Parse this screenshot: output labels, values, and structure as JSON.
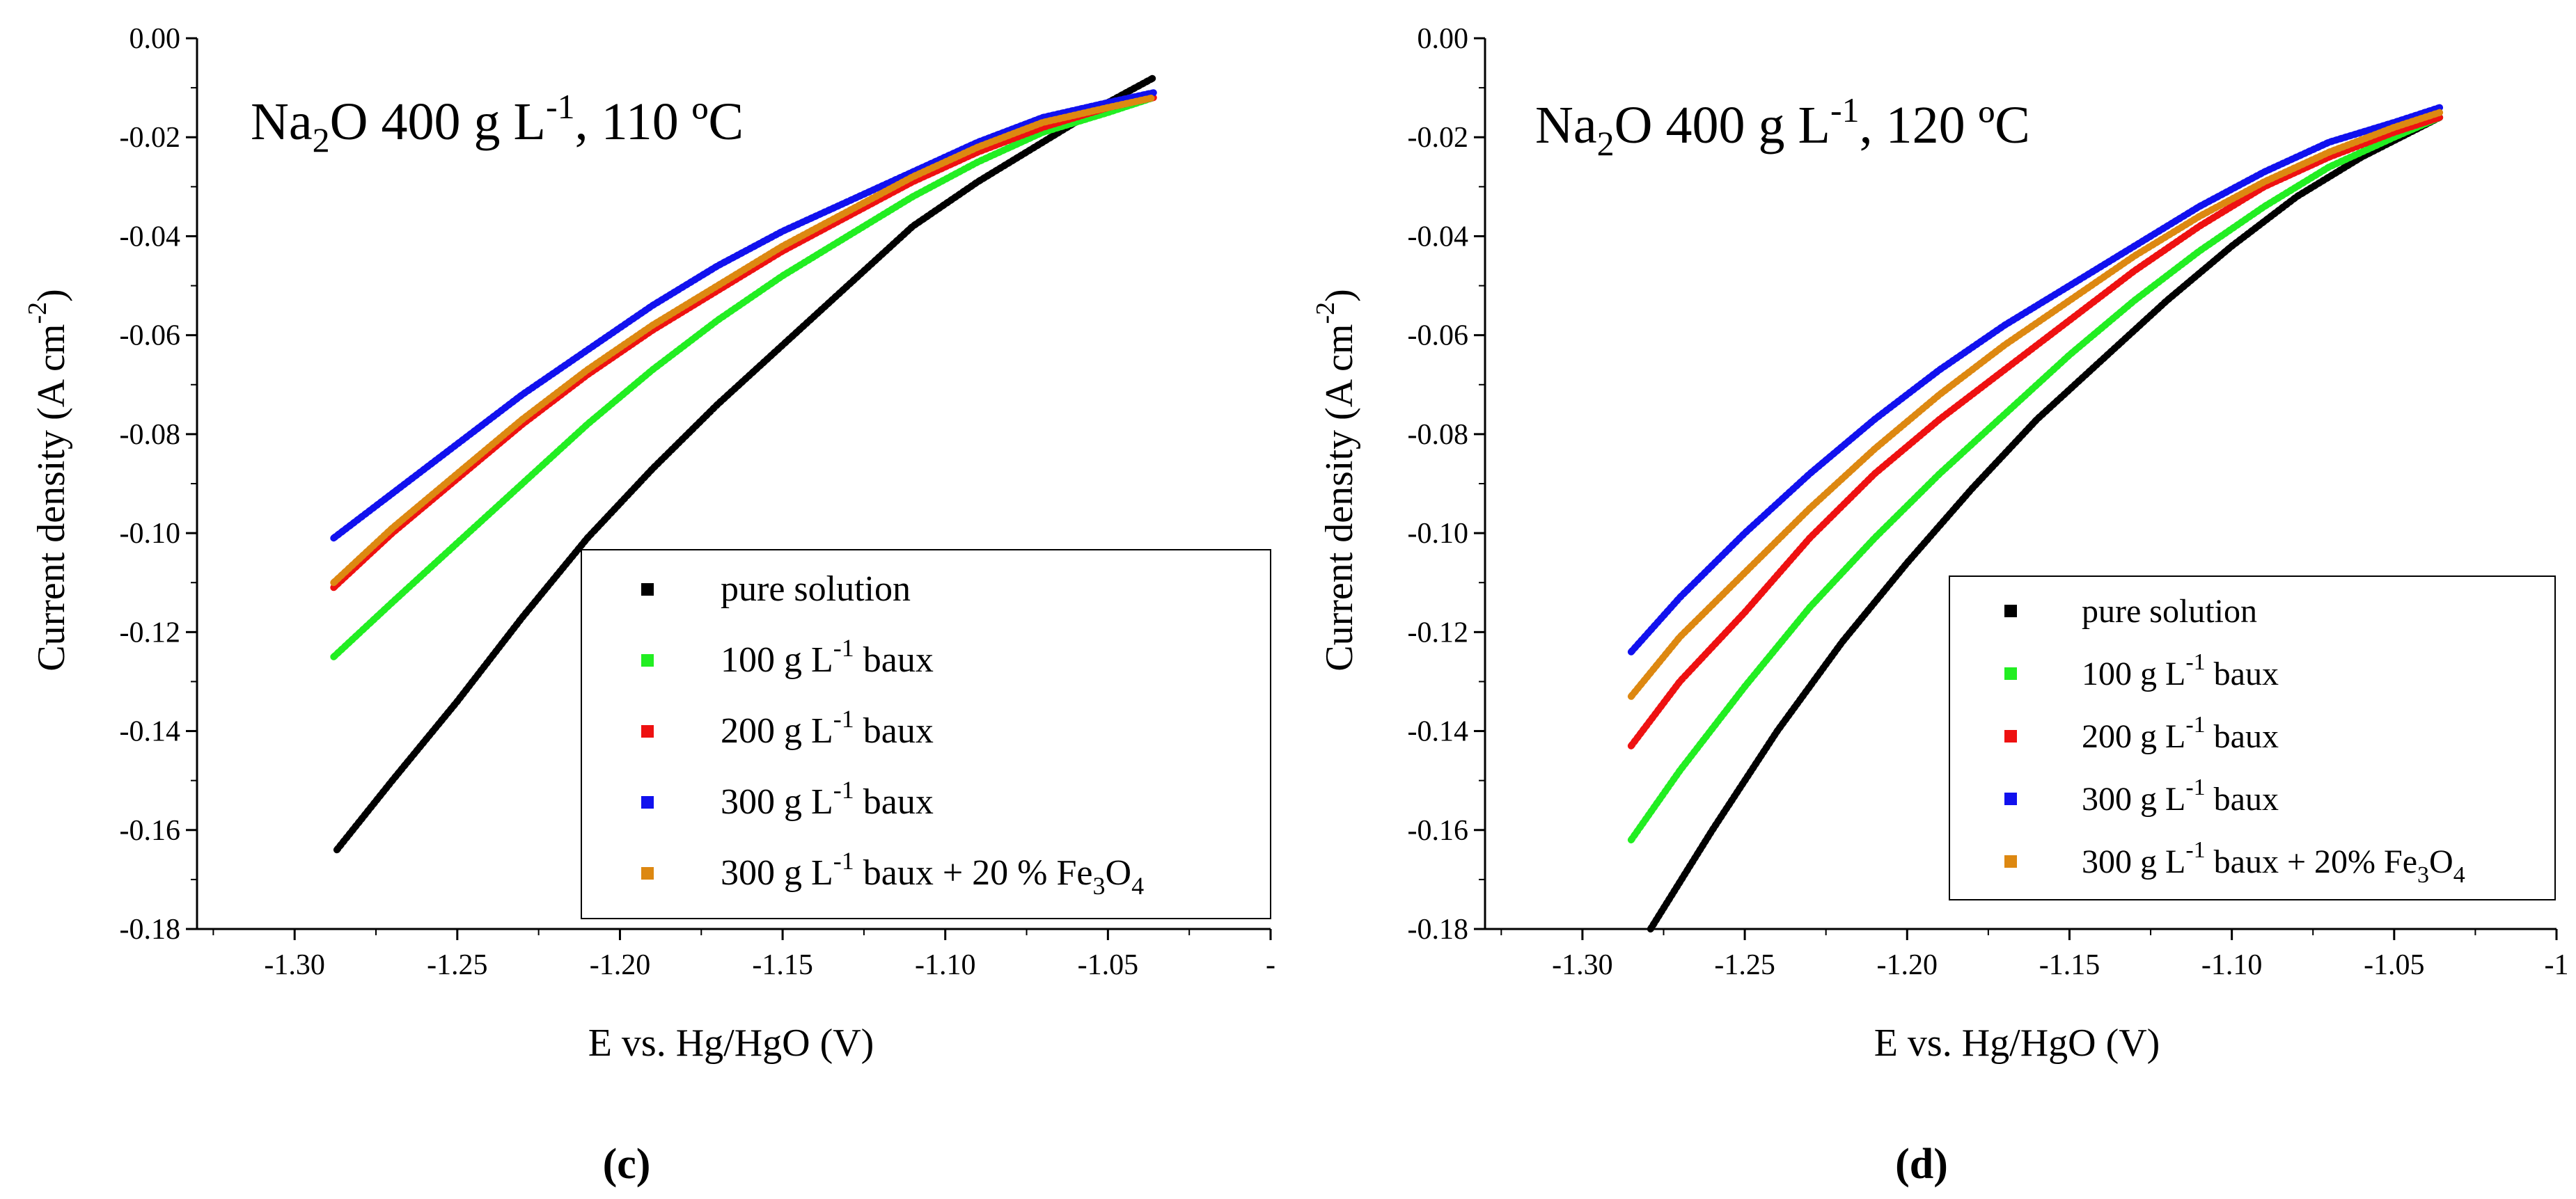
{
  "figure": {
    "panel_labels": [
      "(c)",
      "(d)"
    ]
  },
  "chart_data": [
    {
      "type": "line",
      "panel": "(c)",
      "title": {
        "base": "Na",
        "sub1": "2",
        "mid": "O 400 g L",
        "sup": "-1",
        "tail": ", 110 ºC"
      },
      "xlabel": "E vs. Hg/HgO (V)",
      "ylabel": {
        "base": "Current density (A cm",
        "sup": "-2",
        "tail": ")"
      },
      "xlim": [
        -1.33,
        -1.0
      ],
      "ylim": [
        -0.18,
        0.0
      ],
      "xticks": [
        {
          "value": -1.3,
          "label": "-1.30"
        },
        {
          "value": -1.25,
          "label": "-1.25"
        },
        {
          "value": -1.2,
          "label": "-1.20"
        },
        {
          "value": -1.15,
          "label": "-1.15"
        },
        {
          "value": -1.1,
          "label": "-1.10"
        },
        {
          "value": -1.05,
          "label": "-1.05"
        },
        {
          "value": -1.0,
          "label": "-"
        }
      ],
      "yticks": [
        {
          "value": 0.0,
          "label": "0.00"
        },
        {
          "value": -0.02,
          "label": "-0.02"
        },
        {
          "value": -0.04,
          "label": "-0.04"
        },
        {
          "value": -0.06,
          "label": "-0.06"
        },
        {
          "value": -0.08,
          "label": "-0.08"
        },
        {
          "value": -0.1,
          "label": "-0.10"
        },
        {
          "value": -0.12,
          "label": "-0.12"
        },
        {
          "value": -0.14,
          "label": "-0.14"
        },
        {
          "value": -0.16,
          "label": "-0.16"
        },
        {
          "value": -0.18,
          "label": "-0.18"
        }
      ],
      "legend": {
        "position": "lower-right",
        "entries": [
          {
            "pre": "pure solution",
            "sup": "",
            "post": "",
            "sub": "",
            "end": "",
            "color": "#000000"
          },
          {
            "pre": "100 g L",
            "sup": "-1",
            "post": " baux",
            "sub": "",
            "end": "",
            "color": "#22ee22"
          },
          {
            "pre": "200 g L",
            "sup": "-1",
            "post": " baux",
            "sub": "",
            "end": "",
            "color": "#ee1111"
          },
          {
            "pre": "300 g L",
            "sup": "-1",
            "post": " baux",
            "sub": "",
            "end": "",
            "color": "#1111ee"
          },
          {
            "pre": "300 g L",
            "sup": "-1",
            "post": " baux + 20 % Fe",
            "sub": "3",
            "end": "O",
            "sub2": "4",
            "color": "#dd8811"
          }
        ]
      },
      "series": [
        {
          "name": "pure solution",
          "color": "#000000",
          "x": [
            -1.287,
            -1.27,
            -1.25,
            -1.23,
            -1.21,
            -1.19,
            -1.17,
            -1.15,
            -1.13,
            -1.11,
            -1.09,
            -1.07,
            -1.05,
            -1.036
          ],
          "y": [
            -0.164,
            -0.15,
            -0.134,
            -0.117,
            -0.101,
            -0.087,
            -0.074,
            -0.062,
            -0.05,
            -0.038,
            -0.029,
            -0.021,
            -0.013,
            -0.008
          ]
        },
        {
          "name": "100 g L-1 baux",
          "color": "#22ee22",
          "x": [
            -1.288,
            -1.27,
            -1.25,
            -1.23,
            -1.21,
            -1.19,
            -1.17,
            -1.15,
            -1.13,
            -1.11,
            -1.09,
            -1.07,
            -1.05,
            -1.036
          ],
          "y": [
            -0.125,
            -0.114,
            -0.102,
            -0.09,
            -0.078,
            -0.067,
            -0.057,
            -0.048,
            -0.04,
            -0.032,
            -0.025,
            -0.019,
            -0.015,
            -0.012
          ]
        },
        {
          "name": "200 g L-1 baux",
          "color": "#ee1111",
          "x": [
            -1.288,
            -1.27,
            -1.25,
            -1.23,
            -1.21,
            -1.19,
            -1.17,
            -1.15,
            -1.13,
            -1.11,
            -1.09,
            -1.07,
            -1.05,
            -1.036
          ],
          "y": [
            -0.111,
            -0.1,
            -0.089,
            -0.078,
            -0.068,
            -0.059,
            -0.051,
            -0.043,
            -0.036,
            -0.029,
            -0.023,
            -0.018,
            -0.014,
            -0.012
          ]
        },
        {
          "name": "300 g L-1 baux",
          "color": "#1111ee",
          "x": [
            -1.288,
            -1.27,
            -1.25,
            -1.23,
            -1.21,
            -1.19,
            -1.17,
            -1.15,
            -1.13,
            -1.11,
            -1.09,
            -1.07,
            -1.05,
            -1.036
          ],
          "y": [
            -0.101,
            -0.092,
            -0.082,
            -0.072,
            -0.063,
            -0.054,
            -0.046,
            -0.039,
            -0.033,
            -0.027,
            -0.021,
            -0.016,
            -0.013,
            -0.011
          ]
        },
        {
          "name": "300 g L-1 baux + 20 % Fe3O4",
          "color": "#dd8811",
          "x": [
            -1.288,
            -1.27,
            -1.25,
            -1.23,
            -1.21,
            -1.19,
            -1.17,
            -1.15,
            -1.13,
            -1.11,
            -1.09,
            -1.07,
            -1.05,
            -1.036
          ],
          "y": [
            -0.11,
            -0.099,
            -0.088,
            -0.077,
            -0.067,
            -0.058,
            -0.05,
            -0.042,
            -0.035,
            -0.028,
            -0.022,
            -0.017,
            -0.014,
            -0.012
          ]
        }
      ]
    },
    {
      "type": "line",
      "panel": "(d)",
      "title": {
        "base": "Na",
        "sub1": "2",
        "mid": "O 400 g L",
        "sup": "-1",
        "tail": ", 120 ºC"
      },
      "xlabel": "E vs. Hg/HgO (V)",
      "ylabel": {
        "base": "Current density (A cm",
        "sup": "-2",
        "tail": ")"
      },
      "xlim": [
        -1.33,
        -1.0
      ],
      "ylim": [
        -0.18,
        0.0
      ],
      "xticks": [
        {
          "value": -1.3,
          "label": "-1.30"
        },
        {
          "value": -1.25,
          "label": "-1.25"
        },
        {
          "value": -1.2,
          "label": "-1.20"
        },
        {
          "value": -1.15,
          "label": "-1.15"
        },
        {
          "value": -1.1,
          "label": "-1.10"
        },
        {
          "value": -1.05,
          "label": "-1.05"
        },
        {
          "value": -1.0,
          "label": "-1"
        }
      ],
      "yticks": [
        {
          "value": 0.0,
          "label": "0.00"
        },
        {
          "value": -0.02,
          "label": "-0.02"
        },
        {
          "value": -0.04,
          "label": "-0.04"
        },
        {
          "value": -0.06,
          "label": "-0.06"
        },
        {
          "value": -0.08,
          "label": "-0.08"
        },
        {
          "value": -0.1,
          "label": "-0.10"
        },
        {
          "value": -0.12,
          "label": "-0.12"
        },
        {
          "value": -0.14,
          "label": "-0.14"
        },
        {
          "value": -0.16,
          "label": "-0.16"
        },
        {
          "value": -0.18,
          "label": "-0.18"
        }
      ],
      "legend": {
        "position": "lower-right",
        "entries": [
          {
            "pre": "pure solution",
            "sup": "",
            "post": "",
            "sub": "",
            "end": "",
            "color": "#000000"
          },
          {
            "pre": "100 g L",
            "sup": "-1",
            "post": " baux",
            "sub": "",
            "end": "",
            "color": "#22ee22"
          },
          {
            "pre": "200 g L",
            "sup": "-1",
            "post": " baux",
            "sub": "",
            "end": "",
            "color": "#ee1111"
          },
          {
            "pre": "300 g L",
            "sup": "-1",
            "post": " baux",
            "sub": "",
            "end": "",
            "color": "#1111ee"
          },
          {
            "pre": "300 g L",
            "sup": "-1",
            "post": " baux + 20% Fe",
            "sub": "3",
            "end": "O",
            "sub2": "4",
            "color": "#dd8811"
          }
        ]
      },
      "series": [
        {
          "name": "pure solution",
          "color": "#000000",
          "x": [
            -1.279,
            -1.26,
            -1.24,
            -1.22,
            -1.2,
            -1.18,
            -1.16,
            -1.14,
            -1.12,
            -1.1,
            -1.08,
            -1.06,
            -1.036
          ],
          "y": [
            -0.18,
            -0.16,
            -0.14,
            -0.122,
            -0.106,
            -0.091,
            -0.077,
            -0.065,
            -0.053,
            -0.042,
            -0.032,
            -0.024,
            -0.016
          ]
        },
        {
          "name": "100 g L-1 baux",
          "color": "#22ee22",
          "x": [
            -1.285,
            -1.27,
            -1.25,
            -1.23,
            -1.21,
            -1.19,
            -1.17,
            -1.15,
            -1.13,
            -1.11,
            -1.09,
            -1.07,
            -1.05,
            -1.036
          ],
          "y": [
            -0.162,
            -0.148,
            -0.131,
            -0.115,
            -0.101,
            -0.088,
            -0.076,
            -0.064,
            -0.053,
            -0.043,
            -0.034,
            -0.026,
            -0.02,
            -0.016
          ]
        },
        {
          "name": "200 g L-1 baux",
          "color": "#ee1111",
          "x": [
            -1.285,
            -1.27,
            -1.25,
            -1.23,
            -1.21,
            -1.19,
            -1.17,
            -1.15,
            -1.13,
            -1.11,
            -1.09,
            -1.07,
            -1.05,
            -1.036
          ],
          "y": [
            -0.143,
            -0.13,
            -0.116,
            -0.101,
            -0.088,
            -0.077,
            -0.067,
            -0.057,
            -0.047,
            -0.038,
            -0.03,
            -0.024,
            -0.019,
            -0.016
          ]
        },
        {
          "name": "300 g L-1 baux",
          "color": "#1111ee",
          "x": [
            -1.285,
            -1.27,
            -1.25,
            -1.23,
            -1.21,
            -1.19,
            -1.17,
            -1.15,
            -1.13,
            -1.11,
            -1.09,
            -1.07,
            -1.05,
            -1.036
          ],
          "y": [
            -0.124,
            -0.113,
            -0.1,
            -0.088,
            -0.077,
            -0.067,
            -0.058,
            -0.05,
            -0.042,
            -0.034,
            -0.027,
            -0.021,
            -0.017,
            -0.014
          ]
        },
        {
          "name": "300 g L-1 baux + 20% Fe3O4",
          "color": "#dd8811",
          "x": [
            -1.285,
            -1.27,
            -1.25,
            -1.23,
            -1.21,
            -1.19,
            -1.17,
            -1.15,
            -1.13,
            -1.11,
            -1.09,
            -1.07,
            -1.05,
            -1.036
          ],
          "y": [
            -0.133,
            -0.121,
            -0.108,
            -0.095,
            -0.083,
            -0.072,
            -0.062,
            -0.053,
            -0.044,
            -0.036,
            -0.029,
            -0.023,
            -0.018,
            -0.015
          ]
        }
      ]
    }
  ]
}
